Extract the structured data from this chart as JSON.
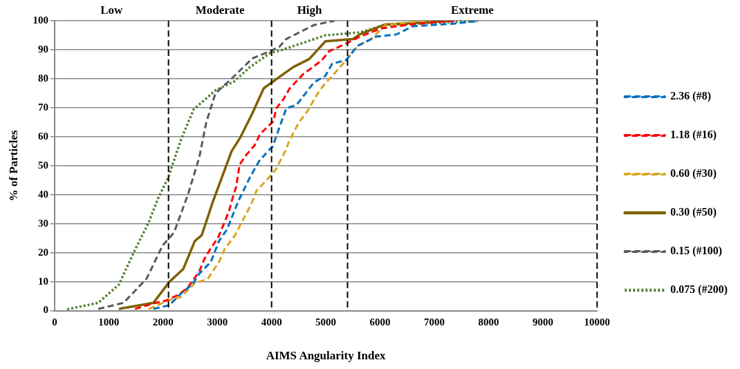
{
  "chart_data": {
    "type": "line",
    "xlabel": "AIMS Angularity Index",
    "ylabel": "% of Particles",
    "xlim": [
      0,
      10000
    ],
    "xticks": [
      0,
      1000,
      2000,
      3000,
      4000,
      5000,
      6000,
      7000,
      8000,
      9000,
      10000
    ],
    "ylim": [
      0,
      100
    ],
    "yticks": [
      0,
      10,
      20,
      30,
      40,
      50,
      60,
      70,
      80,
      90,
      100
    ],
    "grid": "y",
    "legend": "right",
    "annotations": [
      "Low",
      "Moderate",
      "High",
      "Extreme"
    ],
    "ref_lines": [
      {
        "axis": "x",
        "value": 2100,
        "color": "#000000",
        "line_style": "dashed"
      },
      {
        "axis": "x",
        "value": 4000,
        "color": "#000000",
        "line_style": "dashed"
      },
      {
        "axis": "x",
        "value": 5400,
        "color": "#000000",
        "line_style": "dashed"
      },
      {
        "axis": "x",
        "value": 10000,
        "color": "#000000",
        "line_style": "dashed"
      }
    ],
    "series": [
      {
        "name": "2.36 (#8)",
        "color": "#0070c0",
        "line_style": "dashed",
        "x": [
          1822,
          2119,
          2330,
          2542,
          2669,
          2881,
          3030,
          3178,
          3390,
          3602,
          3771,
          3983,
          4017,
          4271,
          4462,
          4780,
          4992,
          5119,
          5373,
          5585,
          5924,
          6305,
          6602,
          7364,
          7745,
          7788
        ],
        "values": [
          0.6,
          1.9,
          5.9,
          9.1,
          12.8,
          16.8,
          24,
          28,
          37.9,
          46,
          51.6,
          56,
          56.5,
          69.8,
          71,
          78.7,
          81,
          85.2,
          86.4,
          91.3,
          94.5,
          95.3,
          98.1,
          99,
          99.8,
          100
        ]
      },
      {
        "name": "1.18 (#16)",
        "color": "#ff0000",
        "line_style": "dashed",
        "x": [
          1483,
          1864,
          2055,
          2288,
          2458,
          2669,
          2754,
          2860,
          3008,
          3136,
          3220,
          3284,
          3347,
          3411,
          3538,
          3686,
          3792,
          4038,
          4081,
          4220,
          4335,
          4589,
          4758,
          4928,
          5055,
          5415,
          5606,
          6008,
          6475,
          6898,
          7364
        ],
        "values": [
          0.6,
          2.7,
          3.5,
          5.5,
          8,
          13.6,
          17.6,
          21,
          25,
          30.6,
          34.6,
          39,
          42.7,
          50.4,
          53.8,
          57,
          61,
          65.4,
          69.6,
          73,
          76.7,
          81.7,
          84,
          86.4,
          89.4,
          92.5,
          94.3,
          97.3,
          98.5,
          99.3,
          100
        ]
      },
      {
        "name": "0.60 (#30)",
        "color": "#daa520",
        "line_style": "dashed",
        "x": [
          1737,
          2097,
          2330,
          2585,
          2818,
          3030,
          3136,
          3326,
          3453,
          3623,
          3720,
          3932,
          4081,
          4250,
          4335,
          4504,
          4653,
          4843,
          4970,
          5225,
          5373,
          5585,
          5839,
          6093,
          6686,
          6940
        ],
        "values": [
          0.6,
          3.5,
          4.7,
          9.5,
          10.8,
          16.8,
          21.3,
          26,
          30.6,
          36.6,
          41.3,
          45.5,
          48.8,
          55,
          58.9,
          65,
          68.6,
          74.7,
          78,
          83.2,
          86.4,
          91.3,
          93.7,
          98.5,
          99.8,
          100
        ]
      },
      {
        "name": "0.30 (#50)",
        "color": "#7f6000",
        "line_style": "solid",
        "x": [
          1186,
          1822,
          2119,
          2373,
          2585,
          2712,
          2924,
          3263,
          3432,
          3644,
          3856,
          4144,
          4398,
          4695,
          4992,
          5500,
          5627,
          6093,
          7364
        ],
        "values": [
          0.6,
          2.7,
          10,
          14.4,
          24,
          26,
          37.9,
          55,
          60,
          68,
          76.7,
          80.6,
          84,
          86.8,
          92.9,
          93.7,
          95.3,
          98.7,
          100
        ]
      },
      {
        "name": "0.15 (#100)",
        "color": "#595959",
        "line_style": "dashed",
        "x": [
          805,
          1271,
          1695,
          1992,
          2203,
          2458,
          2669,
          2797,
          2966,
          3263,
          3644,
          3983,
          4144,
          4271,
          4780,
          5161
        ],
        "values": [
          0.6,
          2.7,
          11,
          22.5,
          27,
          40,
          53,
          65,
          75,
          80,
          87,
          89.6,
          91,
          93.7,
          98.5,
          100
        ]
      },
      {
        "name": "0.075 (#200)",
        "color": "#538135",
        "line_style": "dotted",
        "x": [
          233,
          805,
          1186,
          1483,
          1737,
          1907,
          2097,
          2330,
          2563,
          2966,
          3305,
          3602,
          3983,
          4144,
          4995,
          5627,
          6093,
          6686,
          7745,
          7800
        ],
        "values": [
          0.5,
          2.7,
          9,
          21,
          30.5,
          38.7,
          46,
          59,
          69.4,
          76,
          79,
          84,
          89,
          89.6,
          95,
          96,
          98.5,
          99,
          99.8,
          100
        ]
      }
    ]
  }
}
